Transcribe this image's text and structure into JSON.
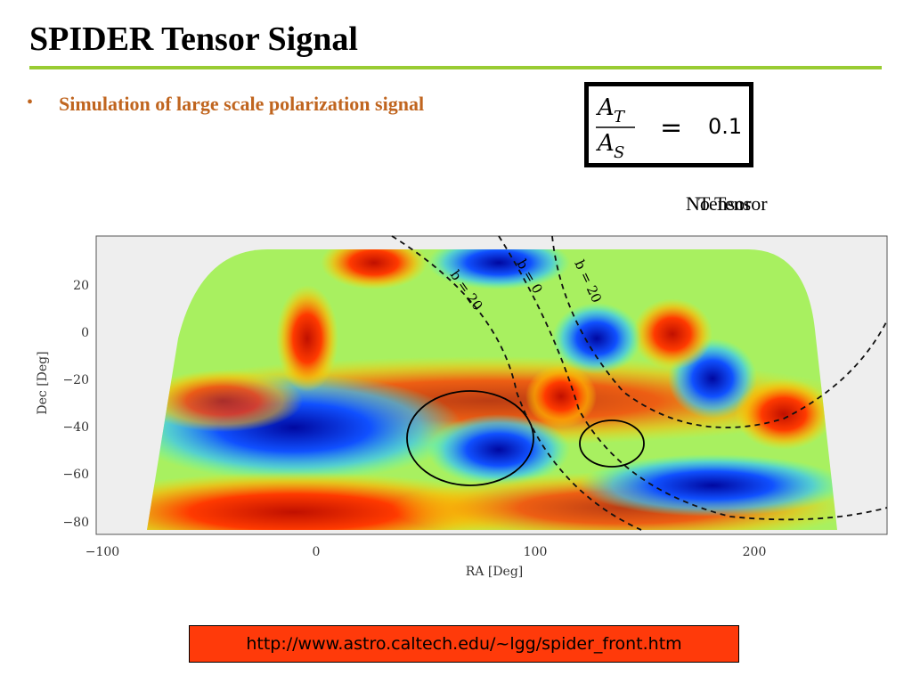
{
  "header": {
    "title": "SPIDER Tensor Signal"
  },
  "bullet": "Simulation of large scale polarization signal",
  "equation": {
    "numerator": "A",
    "numerator_sub": "T",
    "denominator": "A",
    "denominator_sub": "S",
    "relation": "=",
    "value": "0.1"
  },
  "labels": [
    "No Tensor",
    "Tensor"
  ],
  "plot": {
    "xlabel": "RA [Deg]",
    "ylabel": "Dec [Deg]",
    "xtick_labels": [
      "−100",
      "0",
      "100",
      "200"
    ],
    "ytick_labels": [
      "20",
      "0",
      "−20",
      "−40",
      "−60",
      "−80"
    ],
    "contour_labels": [
      "b = 20",
      "b = 0",
      "b = 20"
    ]
  },
  "link": "http://www.astro.caltech.edu/~lgg/spider_front.htm"
}
